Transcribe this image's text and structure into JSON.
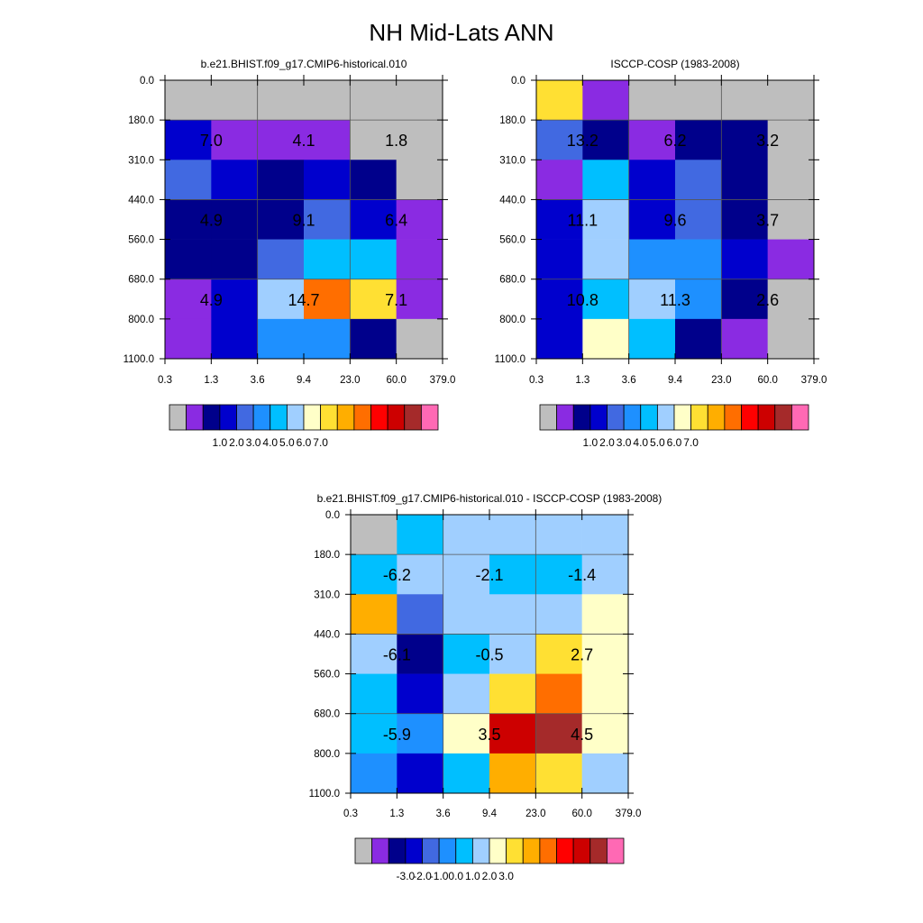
{
  "title": "NH Mid-Lats ANN",
  "colors": {
    "palette": [
      "#bebebe",
      "#8a2be2",
      "#00008b",
      "#0000cd",
      "#4169e1",
      "#1e90ff",
      "#00bfff",
      "#a0cfff",
      "#ffffc8",
      "#ffe033",
      "#ffae00",
      "#ff6e00",
      "#ff0000",
      "#cd0000",
      "#a52a2a",
      "#ff69b4"
    ]
  },
  "chart_data": [
    {
      "type": "heatmap",
      "title": "b.e21.BHIST.f09_g17.CMIP6-historical.010",
      "xticks": [
        "0.3",
        "1.3",
        "3.6",
        "9.4",
        "23.0",
        "60.0",
        "379.0"
      ],
      "yticks": [
        "0.0",
        "180.0",
        "310.0",
        "440.0",
        "560.0",
        "680.0",
        "800.0",
        "1100.0"
      ],
      "cell_color_index": [
        [
          0,
          0,
          0,
          0,
          0,
          0
        ],
        [
          3,
          1,
          1,
          1,
          0,
          0
        ],
        [
          4,
          3,
          2,
          3,
          2,
          0
        ],
        [
          2,
          2,
          2,
          4,
          3,
          1
        ],
        [
          2,
          2,
          4,
          6,
          6,
          1
        ],
        [
          1,
          3,
          7,
          11,
          9,
          1
        ],
        [
          1,
          3,
          5,
          5,
          2,
          0
        ]
      ],
      "annotations": [
        {
          "text": "7.0",
          "col": 1,
          "row": 1.5
        },
        {
          "text": "4.1",
          "col": 3,
          "row": 1.5
        },
        {
          "text": "1.8",
          "col": 5,
          "row": 1.5
        },
        {
          "text": "4.9",
          "col": 1,
          "row": 3.5
        },
        {
          "text": "9.1",
          "col": 3,
          "row": 3.5
        },
        {
          "text": "6.4",
          "col": 5,
          "row": 3.5
        },
        {
          "text": "4.9",
          "col": 1,
          "row": 5.5
        },
        {
          "text": "14.7",
          "col": 3,
          "row": 5.5
        },
        {
          "text": "7.1",
          "col": 5,
          "row": 5.5
        }
      ],
      "colorbar": {
        "labels": [
          "1.0",
          "2.0",
          "3.0",
          "4.0",
          "5.0",
          "6.0",
          "7.0"
        ]
      }
    },
    {
      "type": "heatmap",
      "title": "ISCCP-COSP (1983-2008)",
      "xticks": [
        "0.3",
        "1.3",
        "3.6",
        "9.4",
        "23.0",
        "60.0",
        "379.0"
      ],
      "yticks": [
        "0.0",
        "180.0",
        "310.0",
        "440.0",
        "560.0",
        "680.0",
        "800.0",
        "1100.0"
      ],
      "cell_color_index": [
        [
          9,
          1,
          0,
          0,
          0,
          0
        ],
        [
          4,
          2,
          1,
          2,
          2,
          0
        ],
        [
          1,
          6,
          3,
          4,
          2,
          0
        ],
        [
          3,
          7,
          3,
          4,
          2,
          0
        ],
        [
          3,
          7,
          5,
          5,
          3,
          1
        ],
        [
          3,
          6,
          7,
          5,
          2,
          0
        ],
        [
          3,
          8,
          6,
          2,
          1,
          0
        ]
      ],
      "annotations": [
        {
          "text": "13.2",
          "col": 1,
          "row": 1.5
        },
        {
          "text": "6.2",
          "col": 3,
          "row": 1.5
        },
        {
          "text": "3.2",
          "col": 5,
          "row": 1.5
        },
        {
          "text": "11.1",
          "col": 1,
          "row": 3.5
        },
        {
          "text": "9.6",
          "col": 3,
          "row": 3.5
        },
        {
          "text": "3.7",
          "col": 5,
          "row": 3.5
        },
        {
          "text": "10.8",
          "col": 1,
          "row": 5.5
        },
        {
          "text": "11.3",
          "col": 3,
          "row": 5.5
        },
        {
          "text": "2.6",
          "col": 5,
          "row": 5.5
        }
      ],
      "colorbar": {
        "labels": [
          "1.0",
          "2.0",
          "3.0",
          "4.0",
          "5.0",
          "6.0",
          "7.0"
        ]
      }
    },
    {
      "type": "heatmap",
      "title": "b.e21.BHIST.f09_g17.CMIP6-historical.010 - ISCCP-COSP (1983-2008)",
      "xticks": [
        "0.3",
        "1.3",
        "3.6",
        "9.4",
        "23.0",
        "60.0",
        "379.0"
      ],
      "yticks": [
        "0.0",
        "180.0",
        "310.0",
        "440.0",
        "560.0",
        "680.0",
        "800.0",
        "1100.0"
      ],
      "cell_color_index": [
        [
          0,
          6,
          7,
          7,
          7,
          7
        ],
        [
          6,
          7,
          7,
          6,
          6,
          7
        ],
        [
          10,
          4,
          7,
          7,
          7,
          8
        ],
        [
          7,
          2,
          6,
          7,
          9,
          8
        ],
        [
          6,
          3,
          7,
          9,
          11,
          8
        ],
        [
          6,
          5,
          8,
          13,
          14,
          8
        ],
        [
          5,
          3,
          6,
          10,
          9,
          7
        ]
      ],
      "annotations": [
        {
          "text": "-6.2",
          "col": 1,
          "row": 1.5
        },
        {
          "text": "-2.1",
          "col": 3,
          "row": 1.5
        },
        {
          "text": "-1.4",
          "col": 5,
          "row": 1.5
        },
        {
          "text": "-6.1",
          "col": 1,
          "row": 3.5
        },
        {
          "text": "-0.5",
          "col": 3,
          "row": 3.5
        },
        {
          "text": "2.7",
          "col": 5,
          "row": 3.5
        },
        {
          "text": "-5.9",
          "col": 1,
          "row": 5.5
        },
        {
          "text": "3.5",
          "col": 3,
          "row": 5.5
        },
        {
          "text": "4.5",
          "col": 5,
          "row": 5.5
        }
      ],
      "colorbar": {
        "labels": [
          "-3.0",
          "-2.0",
          "-1.0",
          "0.0",
          "1.0",
          "2.0",
          "3.0"
        ]
      }
    }
  ]
}
